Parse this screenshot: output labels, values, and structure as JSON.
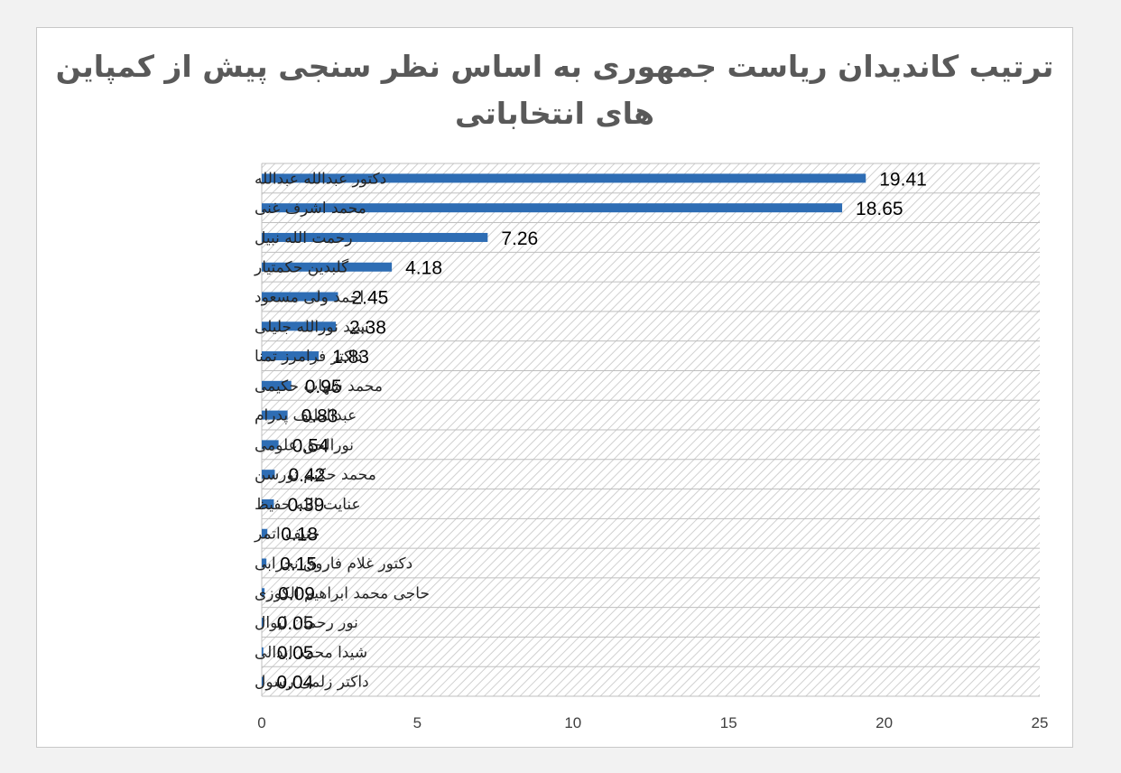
{
  "chart_data": {
    "type": "bar",
    "orientation": "horizontal",
    "title": "ترتیب کاندیدان ریاست جمهوری به اساس نظر سنجی پیش از کمپاین های انتخاباتی",
    "categories": [
      "دکتور عبدالله عبدالله",
      "محمد اشرف غنی",
      "رحمت الله نبیل",
      "گلبدین حکمتیار",
      "احمد ولی مسعود",
      "سید نورالله جلیلی",
      "داکتر فرامرز تمنا",
      "محمد شهاب حکیمی",
      "عبدالطیف پدرام",
      "نورالحق علومی",
      "محمد حکیم تورسن",
      "عنایت الله حفیظ",
      "حنیف اتمر",
      "دکتور غلام فاروق نجرابی",
      "حاجی محمد ابراهیم الکوزی",
      "نور رحمان لیوال",
      "شیدا محمد ابدالی",
      "داکتر زلمی رسول"
    ],
    "values": [
      19.41,
      18.65,
      7.26,
      4.18,
      2.45,
      2.38,
      1.83,
      0.95,
      0.83,
      0.54,
      0.42,
      0.39,
      0.18,
      0.15,
      0.09,
      0.05,
      0.05,
      0.04
    ],
    "value_labels": [
      "19.41",
      "18.65",
      "7.26",
      "4.18",
      "2.45",
      "2.38",
      "1.83",
      "0.95",
      "0.83",
      "0.54",
      "0.42",
      "0.39",
      "0.18",
      "0.15",
      "0.09",
      "0.05",
      "0.05",
      "0.04"
    ],
    "xlim": [
      0,
      25
    ],
    "xticks": [
      0,
      5,
      10,
      15,
      20,
      25
    ],
    "xtick_labels": [
      "0",
      "5",
      "10",
      "15",
      "20",
      "25"
    ],
    "grid": true,
    "plot_background": "diagonal-hatch",
    "data_labels": true,
    "legend": "none",
    "colors": {
      "bar": "#2e6db4",
      "hatch": "#d0d0d0",
      "grid": "#bfbfbf",
      "title": "#595959"
    }
  }
}
